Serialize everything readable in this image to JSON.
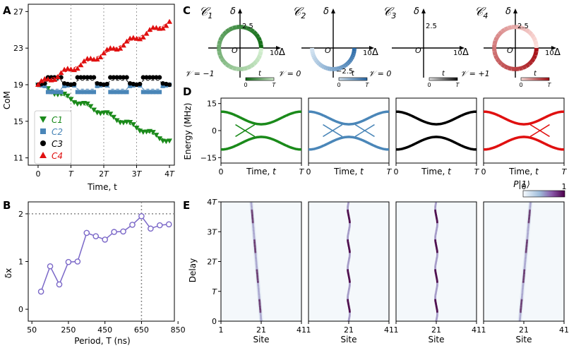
{
  "panels": {
    "A": "A",
    "B": "B",
    "C": "C",
    "D": "D",
    "E": "E"
  },
  "colors": {
    "green": "#1a8a1a",
    "blue": "#4a86b8",
    "black": "#000000",
    "red": "#e01010",
    "purple": "#7b68c8",
    "heat_dark": "#4a0a4a",
    "heat_light": "#f4f8fb"
  },
  "chart_data": [
    {
      "id": "A",
      "type": "scatter",
      "xlabel": "Time, t",
      "ylabel": "CoM",
      "xlim": [
        -0.3,
        4.15
      ],
      "ylim": [
        10.2,
        27.8
      ],
      "x_ticks": [
        {
          "v": 0,
          "label": "0"
        },
        {
          "v": 1,
          "label": "T"
        },
        {
          "v": 2,
          "label": "2T"
        },
        {
          "v": 3,
          "label": "3T"
        },
        {
          "v": 4,
          "label": "4T"
        }
      ],
      "y_ticks": [
        11,
        15,
        19,
        23,
        27
      ],
      "dotted_vlines": [
        1,
        2,
        3
      ],
      "series": [
        {
          "name": "C1",
          "color": "green",
          "marker": "tri_down",
          "x0": 0,
          "dx": 0.1,
          "y0": 19.0,
          "slope": -1.55,
          "wiggle": 0.25
        },
        {
          "name": "C2",
          "color": "blue",
          "marker": "square",
          "x0": 0,
          "dx": 0.1,
          "y0": 19.0,
          "slope": 0,
          "wave": -0.8
        },
        {
          "name": "C3",
          "color": "black",
          "marker": "circle",
          "x0": 0,
          "dx": 0.1,
          "y0": 19.0,
          "slope": 0,
          "wave": 0.8
        },
        {
          "name": "C4",
          "color": "red",
          "marker": "tri_up",
          "x0": 0,
          "dx": 0.1,
          "y0": 19.0,
          "slope": 1.7,
          "wiggle": 0.3
        }
      ],
      "legend": [
        "C1",
        "C2",
        "C3",
        "C4"
      ]
    },
    {
      "id": "B",
      "type": "line",
      "xlabel": "Period, T (ns)",
      "ylabel": "δx",
      "xlim": [
        30,
        830
      ],
      "ylim": [
        -0.25,
        2.25
      ],
      "x_ticks": [
        50,
        250,
        450,
        650,
        850
      ],
      "y_ticks": [
        0,
        1,
        2
      ],
      "hline": 2,
      "vline": 650,
      "x": [
        100,
        150,
        200,
        250,
        300,
        350,
        400,
        450,
        500,
        550,
        600,
        650,
        700,
        750,
        800
      ],
      "y": [
        0.37,
        0.9,
        0.52,
        0.99,
        1.0,
        1.6,
        1.53,
        1.46,
        1.62,
        1.63,
        1.77,
        1.95,
        1.69,
        1.76,
        1.78
      ]
    },
    {
      "id": "C",
      "type": "diagram",
      "xlabel": "Δ",
      "ylabel": "δ",
      "title_labels": [
        "C1",
        "C2",
        "C3",
        "C4"
      ],
      "winding": [
        "𝒱 = −1",
        "𝒱 = 0",
        "𝒱 = 0",
        "𝒱 = +1"
      ],
      "amp_label": [
        "2.5",
        "−2.5",
        "2.5",
        "2.5"
      ],
      "t_label": "t",
      "t0": "0",
      "tT": "T",
      "x_tick": "10"
    },
    {
      "id": "D",
      "type": "line",
      "ylabel": "Energy (MHz)",
      "xlabel": "Time, t",
      "y_ticks": [
        15,
        0,
        -15
      ],
      "x_ticks": [
        "0",
        "T"
      ]
    },
    {
      "id": "E",
      "type": "heatmap",
      "ylabel": "Delay",
      "xlabel": "Site",
      "x_ticks": [
        "1",
        "21",
        "41"
      ],
      "y_ticks": [
        "0",
        "T",
        "2T",
        "3T",
        "4T"
      ],
      "colorbar": {
        "label": "P|1⟩",
        "min": "0",
        "max": "1"
      }
    }
  ],
  "labels": {
    "A_xlabel": "Time, t",
    "A_ylabel": "CoM",
    "B_xlabel": "Period, T (ns)",
    "B_ylabel": "δx",
    "D_ylabel": "Energy (MHz)",
    "D_xlabel": "Time, t",
    "E_ylabel": "Delay",
    "E_xlabel": "Site",
    "cbar_label": "P|1⟩",
    "cbar_min": "0",
    "cbar_max": "1",
    "legend": [
      "C1",
      "C2",
      "C3",
      "C4"
    ]
  }
}
